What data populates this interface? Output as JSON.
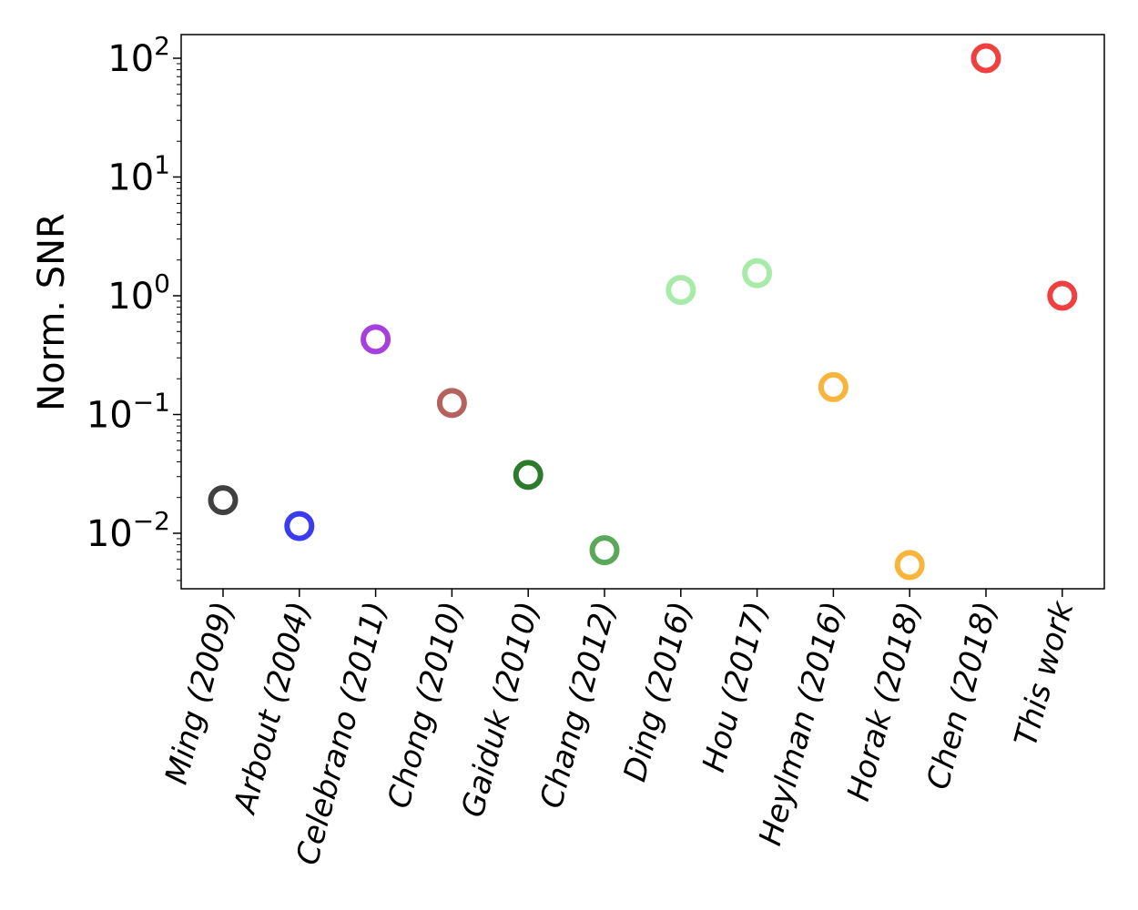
{
  "chart_data": {
    "type": "scatter",
    "title": "",
    "xlabel": "",
    "ylabel": "Norm. SNR",
    "yscale": "log",
    "ylim": [
      0.0033,
      160
    ],
    "grid": false,
    "categories": [
      "Ming (2009)",
      "Arbout (2004)",
      "Celebrano (2011)",
      "Chong (2010)",
      "Gaiduk (2010)",
      "Chang (2012)",
      "Ding (2016)",
      "Hou (2017)",
      "Heylman (2016)",
      "Horak (2018)",
      "Chen (2018)",
      "This work"
    ],
    "values": [
      0.019,
      0.0115,
      0.43,
      0.125,
      0.031,
      0.0072,
      1.12,
      1.55,
      0.17,
      0.0054,
      100,
      1.0
    ],
    "colors": [
      "#404040",
      "#3b3bf0",
      "#a63fdd",
      "#b5615d",
      "#2c7a2c",
      "#5aa85a",
      "#a8eba8",
      "#a8eba8",
      "#f9b43b",
      "#f9b43b",
      "#f03f3f",
      "#f03f3f"
    ],
    "marker": "hollow-circle",
    "yticks": [
      {
        "base": "10",
        "exp": "−2"
      },
      {
        "base": "10",
        "exp": "−1"
      },
      {
        "base": "10",
        "exp": "0"
      },
      {
        "base": "10",
        "exp": "1"
      },
      {
        "base": "10",
        "exp": "2"
      }
    ]
  }
}
